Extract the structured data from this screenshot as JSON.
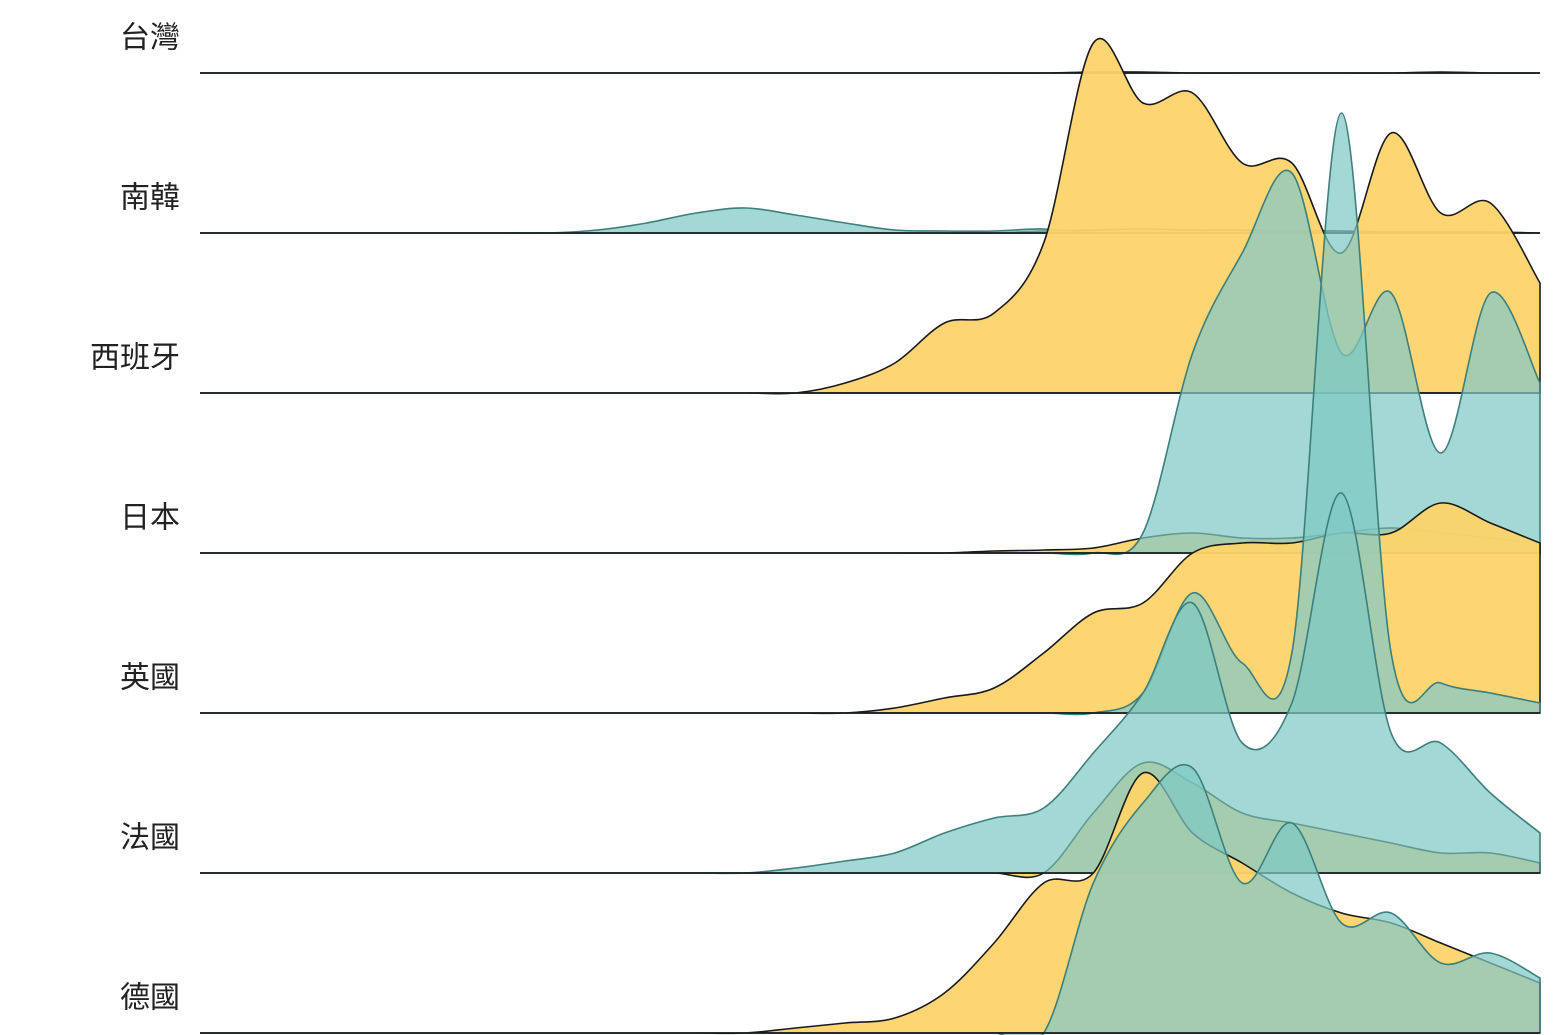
{
  "chart_data": {
    "type": "ridgeline",
    "categories": [
      null,
      null,
      null,
      null,
      null,
      null,
      null,
      null,
      null,
      null,
      null,
      null,
      null,
      null,
      null,
      null,
      null,
      null,
      null,
      null,
      null,
      null,
      null,
      null,
      null,
      null,
      null,
      null
    ],
    "rows": [
      {
        "name": "台灣",
        "series": [
          {
            "color": "#fdd46c",
            "values": [
              0,
              0,
              0,
              0,
              0,
              0,
              0,
              0,
              0,
              0,
              0,
              0,
              0,
              0,
              0,
              0,
              0,
              0,
              1,
              1,
              0,
              0,
              0,
              0,
              0,
              1,
              0,
              0
            ]
          },
          {
            "color": "#7fc9c5",
            "values": [
              0,
              0,
              0,
              0,
              0,
              0,
              0,
              0,
              0,
              0,
              0,
              0,
              0,
              0,
              0,
              0,
              0,
              0,
              0,
              0,
              0,
              0,
              0,
              0,
              0,
              0,
              0,
              0
            ]
          }
        ]
      },
      {
        "name": "南韓",
        "series": [
          {
            "color": "#fdd46c",
            "values": [
              0,
              0,
              0,
              0,
              0,
              0,
              0,
              0,
              0,
              0,
              0,
              0,
              0,
              0,
              0,
              0,
              0,
              2,
              3,
              4,
              3,
              3,
              2,
              2,
              1,
              1,
              1,
              0
            ]
          },
          {
            "color": "#7fc9c5",
            "values": [
              0,
              0,
              0,
              0,
              0,
              0,
              0,
              0,
              3,
              10,
              20,
              25,
              18,
              10,
              3,
              2,
              2,
              4,
              0,
              0,
              0,
              0,
              0,
              0,
              0,
              0,
              0,
              0
            ]
          }
        ]
      },
      {
        "name": "西班牙",
        "series": [
          {
            "color": "#fdd46c",
            "values": [
              0,
              0,
              0,
              0,
              0,
              0,
              0,
              0,
              0,
              0,
              0,
              0,
              0,
              10,
              30,
              70,
              80,
              150,
              350,
              290,
              300,
              230,
              230,
              140,
              260,
              180,
              190,
              110
            ]
          },
          {
            "color": "#7fc9c5",
            "values": [
              0,
              0,
              0,
              0,
              0,
              0,
              0,
              0,
              0,
              0,
              0,
              0,
              0,
              0,
              0,
              0,
              0,
              0,
              0,
              0,
              0,
              0,
              0,
              0,
              0,
              0,
              0,
              0
            ]
          }
        ]
      },
      {
        "name": "日本",
        "series": [
          {
            "color": "#fdd46c",
            "values": [
              0,
              0,
              0,
              0,
              0,
              0,
              0,
              0,
              0,
              0,
              0,
              0,
              0,
              0,
              0,
              0,
              2,
              3,
              5,
              15,
              20,
              15,
              15,
              20,
              25,
              20,
              15,
              10
            ]
          },
          {
            "color": "#7fc9c5",
            "values": [
              0,
              0,
              0,
              0,
              0,
              0,
              0,
              0,
              0,
              0,
              0,
              0,
              0,
              0,
              0,
              0,
              0,
              0,
              0,
              20,
              200,
              300,
              380,
              200,
              260,
              100,
              260,
              170
            ]
          }
        ]
      },
      {
        "name": "英國",
        "series": [
          {
            "color": "#fdd46c",
            "values": [
              0,
              0,
              0,
              0,
              0,
              0,
              0,
              0,
              0,
              0,
              0,
              0,
              0,
              0,
              5,
              15,
              25,
              60,
              100,
              110,
              160,
              170,
              170,
              180,
              180,
              210,
              190,
              170
            ]
          },
          {
            "color": "#7fc9c5",
            "values": [
              0,
              0,
              0,
              0,
              0,
              0,
              0,
              0,
              0,
              0,
              0,
              0,
              0,
              0,
              0,
              0,
              0,
              0,
              0,
              20,
              120,
              50,
              60,
              600,
              60,
              30,
              20,
              10
            ]
          }
        ]
      },
      {
        "name": "法國",
        "series": [
          {
            "color": "#fdd46c",
            "values": [
              0,
              0,
              0,
              0,
              0,
              0,
              0,
              0,
              0,
              0,
              0,
              0,
              0,
              0,
              0,
              0,
              0,
              0,
              60,
              110,
              90,
              60,
              50,
              40,
              30,
              20,
              20,
              10
            ]
          },
          {
            "color": "#7fc9c5",
            "values": [
              0,
              0,
              0,
              0,
              0,
              0,
              0,
              0,
              0,
              0,
              0,
              0,
              5,
              12,
              20,
              40,
              55,
              65,
              120,
              180,
              270,
              130,
              170,
              380,
              140,
              130,
              80,
              40
            ]
          }
        ]
      },
      {
        "name": "德國",
        "series": [
          {
            "color": "#fdd46c",
            "values": [
              0,
              0,
              0,
              0,
              0,
              0,
              0,
              0,
              0,
              0,
              0,
              0,
              5,
              10,
              15,
              40,
              90,
              150,
              160,
              260,
              200,
              170,
              140,
              120,
              110,
              90,
              70,
              50
            ]
          },
          {
            "color": "#7fc9c5",
            "values": [
              0,
              0,
              0,
              0,
              0,
              0,
              0,
              0,
              0,
              0,
              0,
              0,
              0,
              0,
              0,
              0,
              0,
              0,
              150,
              230,
              265,
              150,
              210,
              110,
              120,
              70,
              80,
              55
            ]
          }
        ]
      }
    ]
  }
}
